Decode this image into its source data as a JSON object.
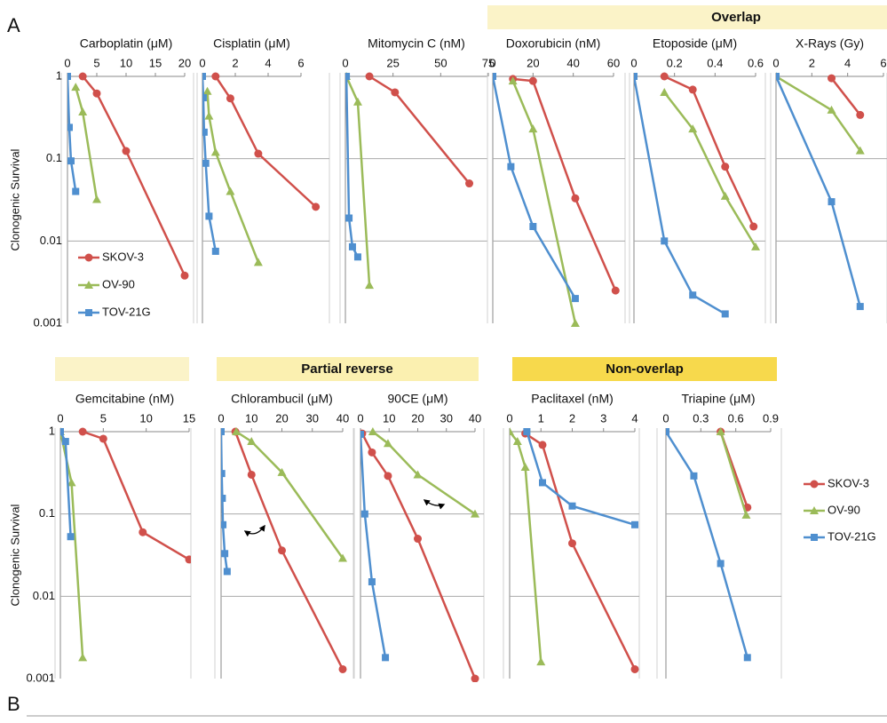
{
  "panel_labels": [
    "A",
    "B"
  ],
  "groups": [
    {
      "label": "Overlap"
    },
    {
      "label": "Partial reverse"
    },
    {
      "label": "Non-overlap"
    }
  ],
  "chart_data": [
    {
      "type": "line",
      "title": "Carboplatin (μM)",
      "ylabel": "Clonogenic Survival",
      "legend": true,
      "log_y": true,
      "grid": true,
      "xlim": [
        0,
        20
      ],
      "xticks": [
        0,
        5,
        10,
        15,
        20
      ],
      "ylim": [
        0.001,
        1
      ],
      "yticks": [
        0.001,
        0.01,
        0.1,
        1
      ],
      "series": [
        {
          "name": "SKOV-3",
          "color": "#d0504b",
          "marker": "circle",
          "x": [
            2.6,
            5,
            10,
            20
          ],
          "values": [
            1,
            0.62,
            0.124,
            0.0038
          ]
        },
        {
          "name": "OV-90",
          "color": "#9bbb59",
          "marker": "triangle",
          "x": [
            1.4,
            2.6,
            5
          ],
          "values": [
            0.74,
            0.37,
            0.032
          ]
        },
        {
          "name": "TOV-21G",
          "color": "#4f8fcf",
          "marker": "square",
          "x": [
            0,
            0.3,
            0.6,
            1.4
          ],
          "values": [
            1,
            0.24,
            0.094,
            0.04
          ]
        }
      ]
    },
    {
      "type": "line",
      "title": "Cisplatin (μM)",
      "log_y": true,
      "grid": true,
      "xlim": [
        0,
        6
      ],
      "xticks": [
        0,
        2,
        4,
        6
      ],
      "ylim": [
        0.001,
        1
      ],
      "yticks": [
        0.001,
        0.01,
        0.1,
        1
      ],
      "series": [
        {
          "name": "SKOV-3",
          "color": "#d0504b",
          "marker": "circle",
          "x": [
            0.8,
            1.7,
            3.4,
            6.9
          ],
          "values": [
            1,
            0.54,
            0.115,
            0.026
          ]
        },
        {
          "name": "OV-90",
          "color": "#9bbb59",
          "marker": "triangle",
          "x": [
            0.3,
            0.4,
            0.8,
            1.7,
            3.4
          ],
          "values": [
            0.66,
            0.33,
            0.12,
            0.04,
            0.0055
          ]
        },
        {
          "name": "TOV-21G",
          "color": "#4f8fcf",
          "marker": "square",
          "x": [
            0,
            0.05,
            0.1,
            0.2,
            0.4,
            0.8
          ],
          "values": [
            1,
            0.55,
            0.21,
            0.088,
            0.02,
            0.0075
          ]
        }
      ]
    },
    {
      "type": "line",
      "title": "Mitomycin C (nM)",
      "log_y": true,
      "grid": true,
      "xlim": [
        0,
        75
      ],
      "xticks": [
        0,
        25,
        50,
        75
      ],
      "ylim": [
        0.001,
        1
      ],
      "yticks": [
        0.001,
        0.01,
        0.1,
        1
      ],
      "series": [
        {
          "name": "SKOV-3",
          "color": "#d0504b",
          "marker": "circle",
          "x": [
            12.6,
            26,
            65
          ],
          "values": [
            1,
            0.64,
            0.05
          ]
        },
        {
          "name": "OV-90",
          "color": "#9bbb59",
          "marker": "triangle",
          "x": [
            0.5,
            6.5,
            12.6
          ],
          "values": [
            1,
            0.49,
            0.0029
          ]
        },
        {
          "name": "TOV-21G",
          "color": "#4f8fcf",
          "marker": "square",
          "x": [
            0.5,
            1.9,
            3.7,
            6.5
          ],
          "values": [
            1,
            0.019,
            0.0085,
            0.0064
          ]
        }
      ]
    },
    {
      "type": "line",
      "title": "Doxorubicin (nM)",
      "log_y": true,
      "grid": true,
      "xlim": [
        0,
        60
      ],
      "xticks": [
        0,
        20,
        40,
        60
      ],
      "ylim": [
        0.001,
        1
      ],
      "yticks": [
        0.001,
        0.01,
        0.1,
        1
      ],
      "series": [
        {
          "name": "SKOV-3",
          "color": "#d0504b",
          "marker": "circle",
          "x": [
            10,
            20,
            41,
            61
          ],
          "values": [
            0.93,
            0.88,
            0.033,
            0.0025
          ]
        },
        {
          "name": "OV-90",
          "color": "#9bbb59",
          "marker": "triangle",
          "x": [
            10,
            20,
            41
          ],
          "values": [
            0.88,
            0.23,
            0.001
          ]
        },
        {
          "name": "TOV-21G",
          "color": "#4f8fcf",
          "marker": "square",
          "x": [
            0,
            9,
            20,
            41
          ],
          "values": [
            1,
            0.08,
            0.015,
            0.002
          ]
        }
      ]
    },
    {
      "type": "line",
      "title": "Etoposide (μM)",
      "log_y": true,
      "grid": true,
      "xlim": [
        0,
        0.6
      ],
      "xticks": [
        0,
        0.2,
        0.4,
        0.6
      ],
      "ylim": [
        0.001,
        1
      ],
      "yticks": [
        0.001,
        0.01,
        0.1,
        1
      ],
      "series": [
        {
          "name": "SKOV-3",
          "color": "#d0504b",
          "marker": "circle",
          "x": [
            0.15,
            0.29,
            0.45,
            0.59
          ],
          "values": [
            1,
            0.69,
            0.08,
            0.015
          ]
        },
        {
          "name": "OV-90",
          "color": "#9bbb59",
          "marker": "triangle",
          "x": [
            0.15,
            0.29,
            0.45,
            0.6
          ],
          "values": [
            0.64,
            0.23,
            0.035,
            0.0085
          ]
        },
        {
          "name": "TOV-21G",
          "color": "#4f8fcf",
          "marker": "square",
          "x": [
            0,
            0.15,
            0.29,
            0.45
          ],
          "values": [
            1,
            0.01,
            0.0022,
            0.0013
          ]
        }
      ]
    },
    {
      "type": "line",
      "title": "X-Rays (Gy)",
      "log_y": true,
      "grid": true,
      "xlim": [
        0,
        6
      ],
      "xticks": [
        0,
        2,
        4,
        6
      ],
      "ylim": [
        0.001,
        1
      ],
      "yticks": [
        0.001,
        0.01,
        0.1,
        1
      ],
      "series": [
        {
          "name": "SKOV-3",
          "color": "#d0504b",
          "marker": "circle",
          "x": [
            3.1,
            4.7
          ],
          "values": [
            0.95,
            0.34
          ]
        },
        {
          "name": "OV-90",
          "color": "#9bbb59",
          "marker": "triangle",
          "x": [
            0,
            3.1,
            4.7
          ],
          "values": [
            1,
            0.39,
            0.125
          ]
        },
        {
          "name": "TOV-21G",
          "color": "#4f8fcf",
          "marker": "square",
          "x": [
            0,
            3.1,
            4.7
          ],
          "values": [
            1,
            0.03,
            0.0016
          ]
        }
      ]
    },
    {
      "type": "line",
      "title": "Gemcitabine (nM)",
      "ylabel": "Clonogenic Survival",
      "log_y": true,
      "grid": true,
      "xlim": [
        0,
        15
      ],
      "xticks": [
        0,
        5,
        10,
        15
      ],
      "ylim": [
        0.001,
        1
      ],
      "yticks": [
        0.001,
        0.01,
        0.1,
        1
      ],
      "series": [
        {
          "name": "SKOV-3",
          "color": "#d0504b",
          "marker": "circle",
          "x": [
            2.6,
            5,
            9.6,
            15
          ],
          "values": [
            1,
            0.82,
            0.06,
            0.028
          ]
        },
        {
          "name": "OV-90",
          "color": "#9bbb59",
          "marker": "triangle",
          "x": [
            0,
            1.3,
            2.6
          ],
          "values": [
            1,
            0.24,
            0.0018
          ]
        },
        {
          "name": "TOV-21G",
          "color": "#4f8fcf",
          "marker": "square",
          "x": [
            0,
            0.6,
            1.2
          ],
          "values": [
            1,
            0.76,
            0.053
          ]
        }
      ]
    },
    {
      "type": "line",
      "title": "Chlorambucil (μM)",
      "log_y": true,
      "grid": true,
      "xlim": [
        0,
        40
      ],
      "xticks": [
        0,
        10,
        20,
        30,
        40
      ],
      "ylim": [
        0.001,
        1
      ],
      "yticks": [
        0.001,
        0.01,
        0.1,
        1
      ],
      "series": [
        {
          "name": "SKOV-3",
          "color": "#d0504b",
          "marker": "circle",
          "x": [
            4.7,
            10,
            20,
            40
          ],
          "values": [
            1,
            0.3,
            0.036,
            0.0013
          ]
        },
        {
          "name": "OV-90",
          "color": "#9bbb59",
          "marker": "triangle",
          "x": [
            5,
            10,
            20,
            40
          ],
          "values": [
            1,
            0.76,
            0.32,
            0.029
          ]
        },
        {
          "name": "TOV-21G",
          "color": "#4f8fcf",
          "marker": "square",
          "x": [
            0,
            0.2,
            0.4,
            0.6,
            1.2,
            2
          ],
          "values": [
            1,
            0.31,
            0.155,
            0.074,
            0.033,
            0.02
          ]
        }
      ]
    },
    {
      "type": "line",
      "title": "90CE (μM)",
      "log_y": true,
      "grid": true,
      "xlim": [
        0,
        40
      ],
      "xticks": [
        0,
        10,
        20,
        30,
        40
      ],
      "ylim": [
        0.001,
        1
      ],
      "yticks": [
        0.001,
        0.01,
        0.1,
        1
      ],
      "series": [
        {
          "name": "SKOV-3",
          "color": "#d0504b",
          "marker": "circle",
          "x": [
            0.6,
            4,
            9.6,
            20,
            40
          ],
          "values": [
            0.95,
            0.56,
            0.29,
            0.05,
            0.001
          ]
        },
        {
          "name": "OV-90",
          "color": "#9bbb59",
          "marker": "triangle",
          "x": [
            4.3,
            9.6,
            20,
            40
          ],
          "values": [
            1,
            0.72,
            0.3,
            0.1
          ]
        },
        {
          "name": "TOV-21G",
          "color": "#4f8fcf",
          "marker": "square",
          "x": [
            0,
            1.5,
            4,
            8.7
          ],
          "values": [
            0.93,
            0.1,
            0.015,
            0.0018
          ]
        }
      ]
    },
    {
      "type": "line",
      "title": "Paclitaxel (nM)",
      "log_y": true,
      "grid": true,
      "xlim": [
        0,
        4
      ],
      "xticks": [
        0,
        1,
        2,
        3,
        4
      ],
      "ylim": [
        0.001,
        1
      ],
      "yticks": [
        0.001,
        0.01,
        0.1,
        1
      ],
      "series": [
        {
          "name": "SKOV-3",
          "color": "#d0504b",
          "marker": "circle",
          "x": [
            0.5,
            1.05,
            2,
            4
          ],
          "values": [
            0.95,
            0.69,
            0.044,
            0.0013
          ]
        },
        {
          "name": "OV-90",
          "color": "#9bbb59",
          "marker": "triangle",
          "x": [
            0,
            0.25,
            0.5,
            1
          ],
          "values": [
            1,
            0.76,
            0.37,
            0.0016
          ]
        },
        {
          "name": "TOV-21G",
          "color": "#4f8fcf",
          "marker": "square",
          "x": [
            0.55,
            1.05,
            2,
            4
          ],
          "values": [
            1,
            0.24,
            0.125,
            0.074
          ]
        }
      ]
    },
    {
      "type": "line",
      "title": "Triapine (μM)",
      "legend": true,
      "log_y": true,
      "grid": true,
      "xlim": [
        0,
        0.9
      ],
      "xticks": [
        0,
        0.3,
        0.6,
        0.9
      ],
      "ylim": [
        0.001,
        1
      ],
      "yticks": [
        0.001,
        0.01,
        0.1,
        1
      ],
      "series": [
        {
          "name": "SKOV-3",
          "color": "#d0504b",
          "marker": "circle",
          "x": [
            0.47,
            0.7
          ],
          "values": [
            1,
            0.12
          ]
        },
        {
          "name": "OV-90",
          "color": "#9bbb59",
          "marker": "triangle",
          "x": [
            0.47,
            0.69
          ],
          "values": [
            1,
            0.097
          ]
        },
        {
          "name": "TOV-21G",
          "color": "#4f8fcf",
          "marker": "square",
          "x": [
            0,
            0.24,
            0.47,
            0.7
          ],
          "values": [
            1,
            0.29,
            0.025,
            0.0018
          ]
        }
      ]
    }
  ]
}
